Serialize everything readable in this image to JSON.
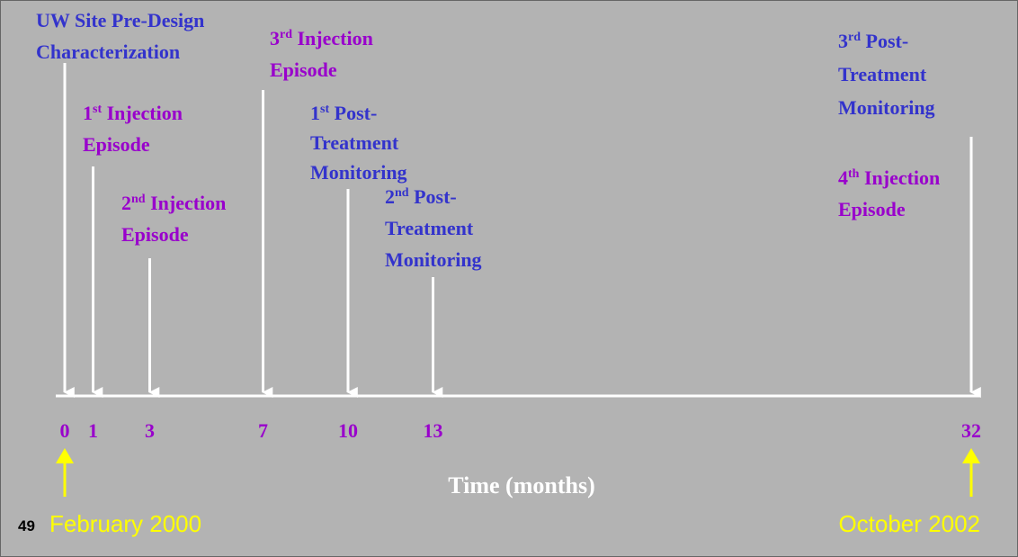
{
  "events": [
    {
      "lines": [
        "UW Site Pre-Design",
        "Characterization"
      ],
      "color": "#3333cc"
    },
    {
      "ordinal": "1",
      "suffix": "st",
      "lines": [
        "Injection",
        "Episode"
      ],
      "color": "#9900cc"
    },
    {
      "ordinal": "2",
      "suffix": "nd",
      "lines": [
        "Injection",
        "Episode"
      ],
      "color": "#9900cc"
    },
    {
      "ordinal": "3",
      "suffix": "rd",
      "lines": [
        "Injection",
        "Episode"
      ],
      "color": "#9900cc"
    },
    {
      "ordinal": "1",
      "suffix": "st",
      "lines": [
        "Post-",
        "Treatment",
        "Monitoring"
      ],
      "color": "#3333cc"
    },
    {
      "ordinal": "2",
      "suffix": "nd",
      "lines": [
        "Post-",
        "Treatment",
        "Monitoring"
      ],
      "color": "#3333cc"
    },
    {
      "ordinal": "3",
      "suffix": "rd",
      "lines": [
        "Post-",
        "Treatment",
        "Monitoring"
      ],
      "color": "#3333cc"
    },
    {
      "ordinal": "4",
      "suffix": "th",
      "lines": [
        "Injection",
        "Episode"
      ],
      "color": "#9900cc"
    }
  ],
  "axis": {
    "ticks": [
      0,
      1,
      3,
      7,
      10,
      13,
      32
    ],
    "label": "Time (months)",
    "tick_color": "#9900cc"
  },
  "start_date": "February 2000",
  "end_date": "October 2002",
  "slide_number": "49"
}
